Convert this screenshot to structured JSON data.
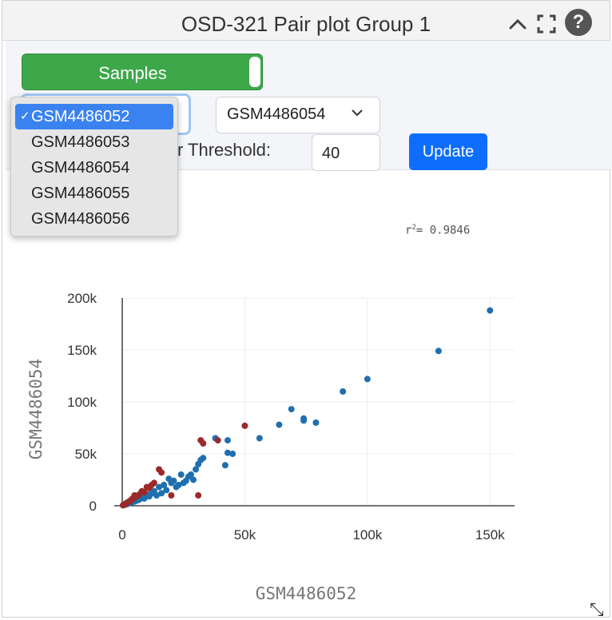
{
  "window": {
    "title": "OSD-321 Pair plot Group 1"
  },
  "controls": {
    "toggle_label": "Samples",
    "sample_x_selected": "GSM4486052",
    "sample_y_selected": "GSM4486054",
    "threshold_label": "r Threshold:",
    "threshold_value": "40",
    "update_label": "Update"
  },
  "dropdown": {
    "options": [
      "GSM4486052",
      "GSM4486053",
      "GSM4486054",
      "GSM4486055",
      "GSM4486056"
    ],
    "selected_index": 0,
    "check": "✓"
  },
  "stats": {
    "r2_prefix": "r",
    "r2_sup": "2",
    "r2_value": "= 0.9846"
  },
  "colors": {
    "blue_series": "#1f6fb0",
    "red_series": "#9b2a2a",
    "toggle_green": "#3da84a",
    "update_blue": "#0d6efd"
  },
  "chart_data": {
    "type": "scatter",
    "title": "",
    "xlabel": "GSM4486052",
    "ylabel": "GSM4486054",
    "xlim": [
      0,
      160000
    ],
    "ylim": [
      0,
      200000
    ],
    "x_ticks": [
      0,
      50000,
      100000,
      150000
    ],
    "x_tick_labels": [
      "0",
      "50k",
      "100k",
      "150k"
    ],
    "y_ticks": [
      0,
      50000,
      100000,
      150000,
      200000
    ],
    "y_tick_labels": [
      "0",
      "50k",
      "100k",
      "150k",
      "200k"
    ],
    "grid": true,
    "series": [
      {
        "color": "#1f6fb0",
        "points": [
          [
            150000,
            188000
          ],
          [
            129000,
            149000
          ],
          [
            100000,
            122000
          ],
          [
            90000,
            110000
          ],
          [
            79000,
            80000
          ],
          [
            74000,
            84000
          ],
          [
            74000,
            82000
          ],
          [
            69000,
            93000
          ],
          [
            64000,
            78000
          ],
          [
            56000,
            65000
          ],
          [
            45000,
            50000
          ],
          [
            43000,
            51000
          ],
          [
            43000,
            63000
          ],
          [
            42000,
            39000
          ],
          [
            38000,
            65000
          ],
          [
            33000,
            46000
          ],
          [
            32000,
            44000
          ],
          [
            31000,
            40000
          ],
          [
            30000,
            35000
          ],
          [
            29000,
            25000
          ],
          [
            28000,
            30000
          ],
          [
            27000,
            28000
          ],
          [
            26000,
            24000
          ],
          [
            25000,
            22000
          ],
          [
            24000,
            30000
          ],
          [
            23000,
            20000
          ],
          [
            22000,
            18000
          ],
          [
            21000,
            24000
          ],
          [
            20000,
            22000
          ],
          [
            19000,
            26000
          ],
          [
            18000,
            15000
          ],
          [
            17000,
            20000
          ],
          [
            16000,
            12000
          ],
          [
            15000,
            18000
          ],
          [
            14000,
            10000
          ],
          [
            13000,
            14000
          ],
          [
            12000,
            12000
          ],
          [
            11000,
            9000
          ],
          [
            10000,
            11000
          ],
          [
            9000,
            7000
          ],
          [
            8000,
            9000
          ],
          [
            7000,
            6000
          ],
          [
            6000,
            5000
          ],
          [
            5000,
            4000
          ],
          [
            4000,
            3500
          ],
          [
            3000,
            2500
          ],
          [
            2000,
            1500
          ],
          [
            1000,
            800
          ]
        ]
      },
      {
        "color": "#9b2a2a",
        "points": [
          [
            50000,
            77000
          ],
          [
            39000,
            63000
          ],
          [
            33000,
            60000
          ],
          [
            32000,
            63000
          ],
          [
            31000,
            10000
          ],
          [
            20000,
            10000
          ],
          [
            16000,
            32000
          ],
          [
            15000,
            35000
          ],
          [
            13000,
            22000
          ],
          [
            12000,
            20000
          ],
          [
            11000,
            17000
          ],
          [
            10000,
            18000
          ],
          [
            9000,
            13000
          ],
          [
            8000,
            14000
          ],
          [
            7000,
            11000
          ],
          [
            6000,
            9000
          ],
          [
            5000,
            10000
          ],
          [
            4500,
            7000
          ],
          [
            4000,
            6500
          ],
          [
            3500,
            5000
          ],
          [
            3000,
            4500
          ],
          [
            2500,
            3500
          ],
          [
            2000,
            3000
          ],
          [
            1500,
            2000
          ],
          [
            1000,
            1500
          ],
          [
            600,
            800
          ],
          [
            300,
            400
          ]
        ]
      }
    ]
  }
}
